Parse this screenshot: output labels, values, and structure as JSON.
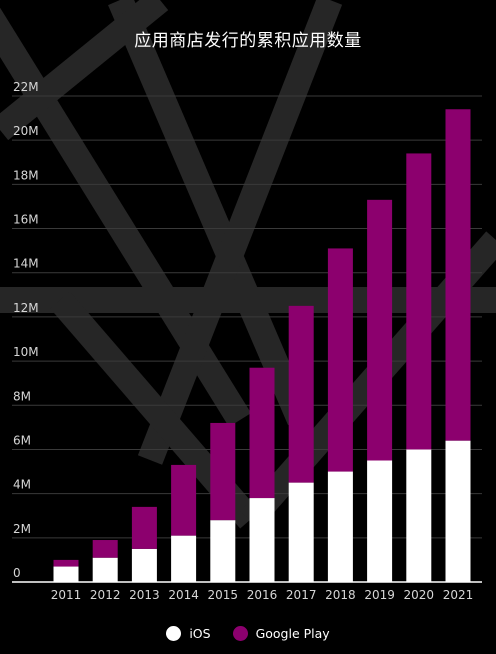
{
  "chart_data": {
    "type": "bar",
    "stacked": true,
    "title": "应用商店发行的累积应用数量",
    "categories": [
      "2011",
      "2012",
      "2013",
      "2014",
      "2015",
      "2016",
      "2017",
      "2018",
      "2019",
      "2020",
      "2021"
    ],
    "series": [
      {
        "name": "iOS",
        "color": "#ffffff",
        "values": [
          0.7,
          1.1,
          1.5,
          2.1,
          2.8,
          3.8,
          4.5,
          5.0,
          5.5,
          6.0,
          6.4
        ]
      },
      {
        "name": "Google Play",
        "color": "#8c006e",
        "values": [
          0.3,
          0.8,
          1.9,
          3.2,
          4.4,
          5.9,
          8.0,
          10.1,
          11.8,
          13.4,
          15.0
        ]
      }
    ],
    "ylim": [
      0,
      22
    ],
    "yticks": [
      "0",
      "2M",
      "4M",
      "6M",
      "8M",
      "10M",
      "12M",
      "14M",
      "16M",
      "18M",
      "20M",
      "22M"
    ],
    "grid": true,
    "legend_position": "bottom"
  }
}
